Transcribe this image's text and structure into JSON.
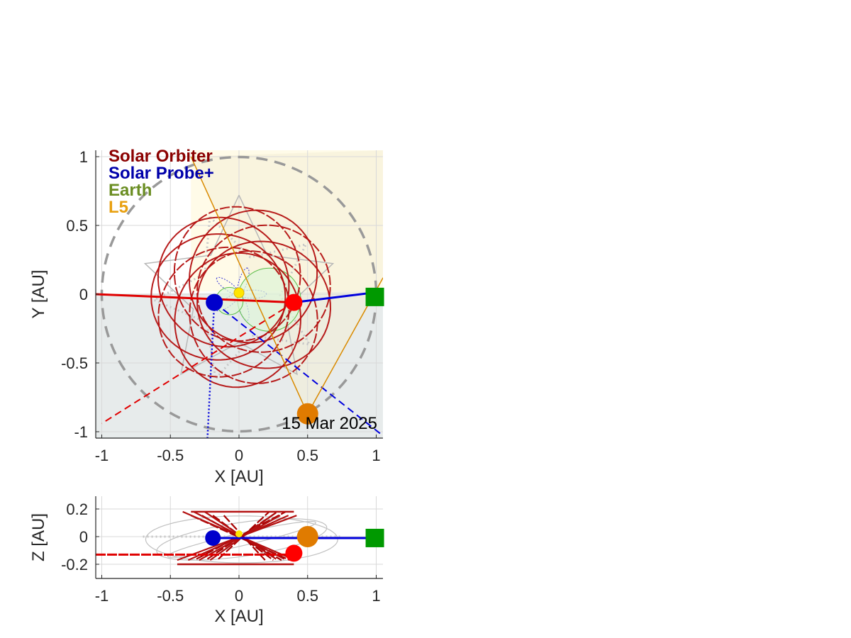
{
  "colors": {
    "solar_orbiter": "#8b0000",
    "solar_probe": "#0000aa",
    "earth": "#6b8e23",
    "l5": "#e8a010",
    "so_marker": "#ff0000",
    "sp_marker": "#0000cc",
    "earth_marker": "#009900",
    "l5_marker": "#e07b00",
    "sun": "#ffe600",
    "axis": "#262626",
    "grid": "#d9d9d9",
    "shade_yellow": "#fffbe8",
    "shade_grey": "#e6eaea"
  },
  "legend": [
    "Solar Orbiter",
    "Solar Probe+",
    "Earth",
    "L5"
  ],
  "date_label": "15 Mar 2025",
  "chart_data": [
    {
      "type": "scatter",
      "panel": "top view",
      "xlabel": "X [AU]",
      "ylabel": "Y [AU]",
      "xlim": [
        -1.05,
        1.05
      ],
      "ylim": [
        -1.05,
        1.05
      ],
      "xticks": [
        -1,
        -0.5,
        0,
        0.5,
        1
      ],
      "xtick_labels": [
        "-1",
        "-0.5",
        "0",
        "0.5",
        "1"
      ],
      "yticks": [
        -1,
        -0.5,
        0,
        0.5,
        1
      ],
      "ytick_labels": [
        "-1",
        "-0.5",
        "0",
        "0.5",
        "1"
      ],
      "grid": true,
      "points": {
        "sun": [
          0,
          0.01
        ],
        "solar_orbiter": [
          0.4,
          -0.06
        ],
        "solar_probe": [
          -0.18,
          -0.06
        ],
        "earth": [
          0.99,
          -0.02
        ],
        "l5": [
          0.5,
          -0.87
        ]
      },
      "earth_orbit_radius": 1.0,
      "ecliptic_line": [
        [
          -1.05,
          0.0
        ],
        [
          1.05,
          0.02
        ]
      ],
      "so_dashed_line": [
        [
          0.4,
          -0.06
        ],
        [
          -1.0,
          -0.94
        ]
      ],
      "sp_dashed_line": [
        [
          -0.18,
          -0.06
        ],
        [
          1.05,
          -1.03
        ]
      ],
      "sp_dotted_line": [
        [
          -0.18,
          -0.06
        ],
        [
          -0.23,
          -1.05
        ]
      ],
      "l5_lines": [
        [
          [
            -0.35,
            1.0
          ],
          [
            0.5,
            -0.87
          ]
        ],
        [
          [
            0.5,
            -0.87
          ],
          [
            1.05,
            0.12
          ]
        ]
      ]
    },
    {
      "type": "scatter",
      "panel": "side view",
      "xlabel": "X [AU]",
      "ylabel": "Z [AU]",
      "xlim": [
        -1.05,
        1.05
      ],
      "ylim": [
        -0.3,
        0.3
      ],
      "xticks": [
        -1,
        -0.5,
        0,
        0.5,
        1
      ],
      "xtick_labels": [
        "-1",
        "-0.5",
        "0",
        "0.5",
        "1"
      ],
      "yticks": [
        -0.2,
        0,
        0.2
      ],
      "ytick_labels": [
        "-0.2",
        "0",
        "0.2"
      ],
      "grid": true,
      "points": {
        "sun": [
          0,
          0.02
        ],
        "solar_orbiter": [
          0.4,
          -0.12
        ],
        "solar_probe": [
          -0.19,
          -0.01
        ],
        "earth": [
          0.99,
          -0.01
        ],
        "l5": [
          0.5,
          0.0
        ]
      }
    }
  ]
}
